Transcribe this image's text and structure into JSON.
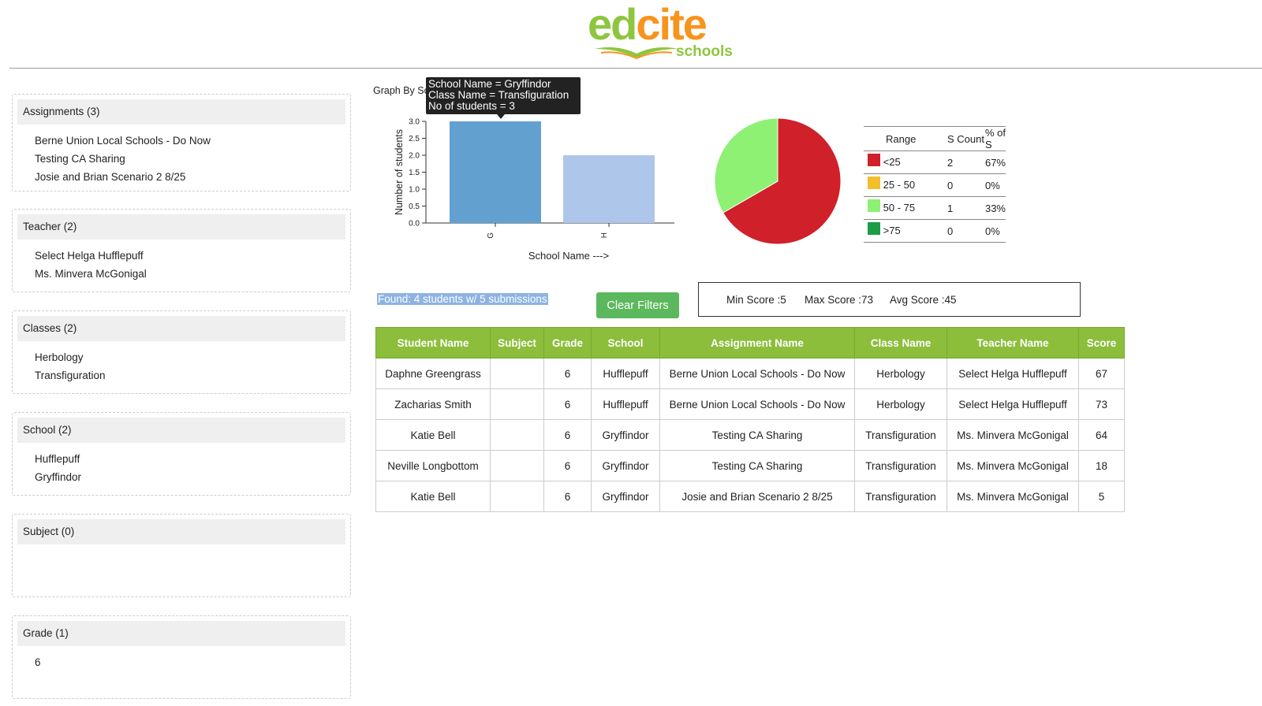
{
  "logo": {
    "ed": "ed",
    "cite": "cite",
    "sub": "schools"
  },
  "filters": [
    {
      "title": "Assignments (3)",
      "items": [
        "Berne Union Local Schools - Do Now",
        "Testing CA Sharing",
        "Josie and Brian Scenario 2 8/25"
      ]
    },
    {
      "title": "Teacher (2)",
      "items": [
        "Select Helga Hufflepuff",
        "Ms. Minvera McGonigal"
      ]
    },
    {
      "title": "Classes (2)",
      "items": [
        "Herbology",
        "Transfiguration"
      ]
    },
    {
      "title": "School (2)",
      "items": [
        "Hufflepuff",
        "Gryffindor"
      ]
    },
    {
      "title": "Subject (0)",
      "items": []
    },
    {
      "title": "Grade (1)",
      "items": [
        "6"
      ]
    }
  ],
  "graph": {
    "title_visible": "Graph By Sc",
    "tooltip": {
      "line1": "School Name = Gryffindor",
      "line2": "Class Name = Transfiguration",
      "line3": "No of students = 3"
    }
  },
  "chart_data": [
    {
      "type": "bar",
      "categories": [
        "G",
        "H"
      ],
      "values": [
        3,
        2
      ],
      "xlabel": "School Name --->",
      "ylabel": "Number of students",
      "ylim": [
        0,
        3
      ],
      "yticks": [
        "0.0",
        "0.5",
        "1.0",
        "1.5",
        "2.0",
        "2.5",
        "3.0"
      ],
      "colors": [
        "#62a1cf",
        "#aec6e9"
      ]
    },
    {
      "type": "pie",
      "labels": [
        "<25",
        "25 - 50",
        "50 - 75",
        ">75"
      ],
      "values": [
        2,
        0,
        1,
        0
      ],
      "colors": [
        "#d0202a",
        "#f2be2c",
        "#8ef174",
        "#1b9d48"
      ]
    }
  ],
  "legend": {
    "headers": [
      "Range",
      "S Count",
      "% of S"
    ],
    "rows": [
      {
        "range": "<25",
        "count": "2",
        "pct": "67%",
        "color": "#d0202a"
      },
      {
        "range": "25 - 50",
        "count": "0",
        "pct": "0%",
        "color": "#f2be2c"
      },
      {
        "range": "50 - 75",
        "count": "1",
        "pct": "33%",
        "color": "#8ef174"
      },
      {
        "range": ">75",
        "count": "0",
        "pct": "0%",
        "color": "#1b9d48"
      }
    ]
  },
  "found_text": "Found: 4 students w/ 5 submissions",
  "clear_label": "Clear Filters",
  "stats": {
    "min": "Min Score :5",
    "max": "Max Score :73",
    "avg": "Avg Score :45"
  },
  "table": {
    "headers": [
      "Student Name",
      "Subject",
      "Grade",
      "School",
      "Assignment Name",
      "Class Name",
      "Teacher Name",
      "Score"
    ],
    "rows": [
      [
        "Daphne Greengrass",
        "",
        "6",
        "Hufflepuff",
        "Berne Union Local Schools - Do Now",
        "Herbology",
        "Select Helga Hufflepuff",
        "67"
      ],
      [
        "Zacharias Smith",
        "",
        "6",
        "Hufflepuff",
        "Berne Union Local Schools - Do Now",
        "Herbology",
        "Select Helga Hufflepuff",
        "73"
      ],
      [
        "Katie Bell",
        "",
        "6",
        "Gryffindor",
        "Testing CA Sharing",
        "Transfiguration",
        "Ms. Minvera McGonigal",
        "64"
      ],
      [
        "Neville Longbottom",
        "",
        "6",
        "Gryffindor",
        "Testing CA Sharing",
        "Transfiguration",
        "Ms. Minvera McGonigal",
        "18"
      ],
      [
        "Katie Bell",
        "",
        "6",
        "Gryffindor",
        "Josie and Brian Scenario 2 8/25",
        "Transfiguration",
        "Ms. Minvera McGonigal",
        "5"
      ]
    ]
  }
}
